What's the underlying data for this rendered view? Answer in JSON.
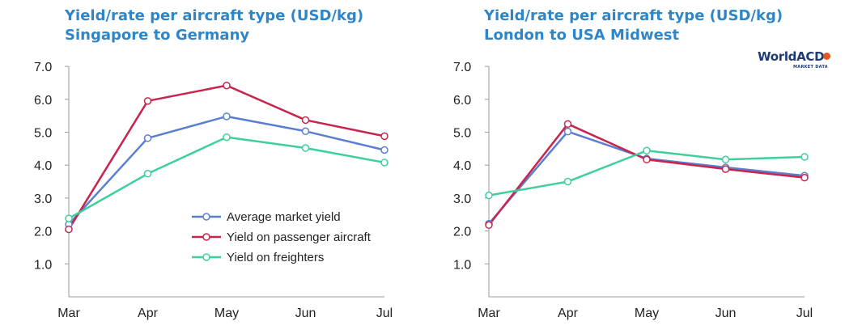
{
  "chart_data": [
    {
      "type": "line",
      "title": "Yield/rate per aircraft type (USD/kg)",
      "subtitle": "Singapore to Germany",
      "categories": [
        "Mar",
        "Apr",
        "May",
        "Jun",
        "Jul"
      ],
      "ylim": [
        0,
        7
      ],
      "yticks": [
        "1.0",
        "2.0",
        "3.0",
        "4.0",
        "5.0",
        "6.0",
        "7.0"
      ],
      "grid": false,
      "legend_placement": "center-right",
      "series": [
        {
          "name": "Average market yield",
          "color": "#5b7fcf",
          "values": [
            2.2,
            4.82,
            5.48,
            5.03,
            4.46
          ]
        },
        {
          "name": "Yield on passenger aircraft",
          "color": "#c7254e",
          "values": [
            2.05,
            5.95,
            6.42,
            5.37,
            4.88
          ]
        },
        {
          "name": "Yield on freighters",
          "color": "#3fcf9a",
          "values": [
            2.38,
            3.74,
            4.85,
            4.52,
            4.08
          ]
        }
      ]
    },
    {
      "type": "line",
      "title": "Yield/rate per aircraft type (USD/kg)",
      "subtitle": "London to USA Midwest",
      "categories": [
        "Mar",
        "Apr",
        "May",
        "Jun",
        "Jul"
      ],
      "ylim": [
        0,
        7
      ],
      "yticks": [
        "1.0",
        "2.0",
        "3.0",
        "4.0",
        "5.0",
        "6.0",
        "7.0"
      ],
      "grid": false,
      "series": [
        {
          "name": "Average market yield",
          "color": "#5b7fcf",
          "values": [
            2.22,
            5.02,
            4.2,
            3.93,
            3.68
          ]
        },
        {
          "name": "Yield on passenger aircraft",
          "color": "#c7254e",
          "values": [
            2.18,
            5.25,
            4.17,
            3.88,
            3.62
          ]
        },
        {
          "name": "Yield on freighters",
          "color": "#3fcf9a",
          "values": [
            3.08,
            3.5,
            4.44,
            4.17,
            4.25
          ]
        }
      ]
    }
  ],
  "logo": {
    "name": "WorldACD",
    "sub": "MARKET DATA",
    "brand_color": "#1f3b73",
    "dot_color": "#e8561e"
  }
}
